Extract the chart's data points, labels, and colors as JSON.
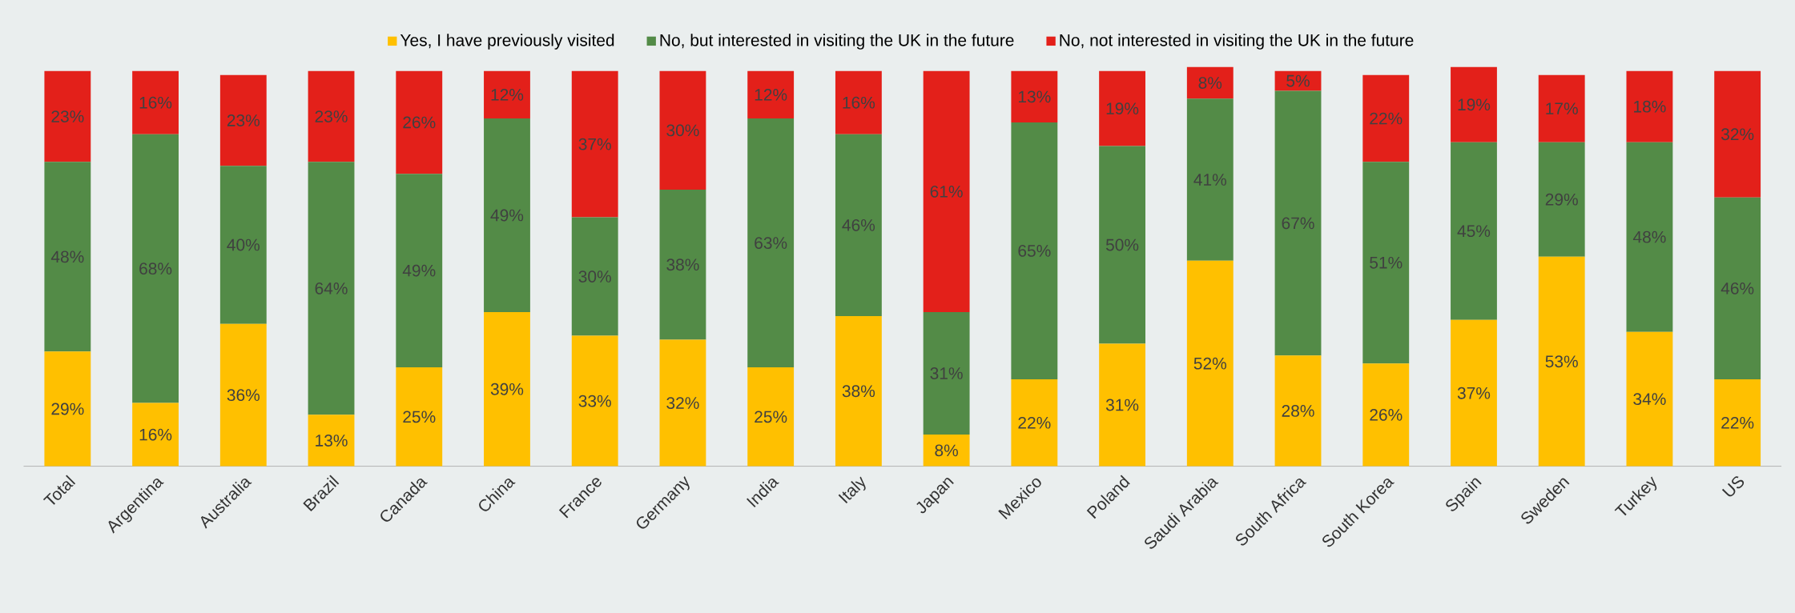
{
  "chart_data": {
    "type": "bar",
    "stacked": true,
    "legend": "top",
    "tick_labels": "x",
    "categories": [
      "Total",
      "Argentina",
      "Australia",
      "Brazil",
      "Canada",
      "China",
      "France",
      "Germany",
      "India",
      "Italy",
      "Japan",
      "Mexico",
      "Poland",
      "Saudi Arabia",
      "South Africa",
      "South Korea",
      "Spain",
      "Sweden",
      "Turkey",
      "US"
    ],
    "series": [
      {
        "name": "Yes, I have previously visited",
        "color": "#ffc000",
        "values": [
          29,
          16,
          36,
          13,
          25,
          39,
          33,
          32,
          25,
          38,
          8,
          22,
          31,
          52,
          28,
          26,
          37,
          53,
          34,
          22
        ],
        "value_labels": [
          "29%",
          "16%",
          "36%",
          "13%",
          "25%",
          "39%",
          "33%",
          "32%",
          "25%",
          "38%",
          "8%",
          "22%",
          "31%",
          "52%",
          "28%",
          "26%",
          "37%",
          "53%",
          "34%",
          "22%"
        ]
      },
      {
        "name": "No, but interested in visiting the UK in the future",
        "color": "#538b47",
        "values": [
          48,
          68,
          40,
          64,
          49,
          49,
          30,
          38,
          63,
          46,
          31,
          65,
          50,
          41,
          67,
          51,
          45,
          29,
          48,
          46
        ],
        "value_labels": [
          "48%",
          "68%",
          "40%",
          "64%",
          "49%",
          "49%",
          "30%",
          "38%",
          "63%",
          "46%",
          "31%",
          "65%",
          "50%",
          "41%",
          "67%",
          "51%",
          "45%",
          "29%",
          "48%",
          "46%"
        ]
      },
      {
        "name": "No, not interested in visiting the UK in the future",
        "color": "#e3201a",
        "values": [
          23,
          16,
          23,
          23,
          26,
          12,
          37,
          30,
          12,
          16,
          61,
          13,
          19,
          8,
          5,
          22,
          19,
          17,
          18,
          32
        ],
        "value_labels": [
          "23%",
          "16%",
          "23%",
          "23%",
          "26%",
          "12%",
          "37%",
          "30%",
          "12%",
          "16%",
          "61%",
          "13%",
          "19%",
          "8%",
          "5%",
          "22%",
          "19%",
          "17%",
          "18%",
          "32%"
        ]
      }
    ]
  }
}
